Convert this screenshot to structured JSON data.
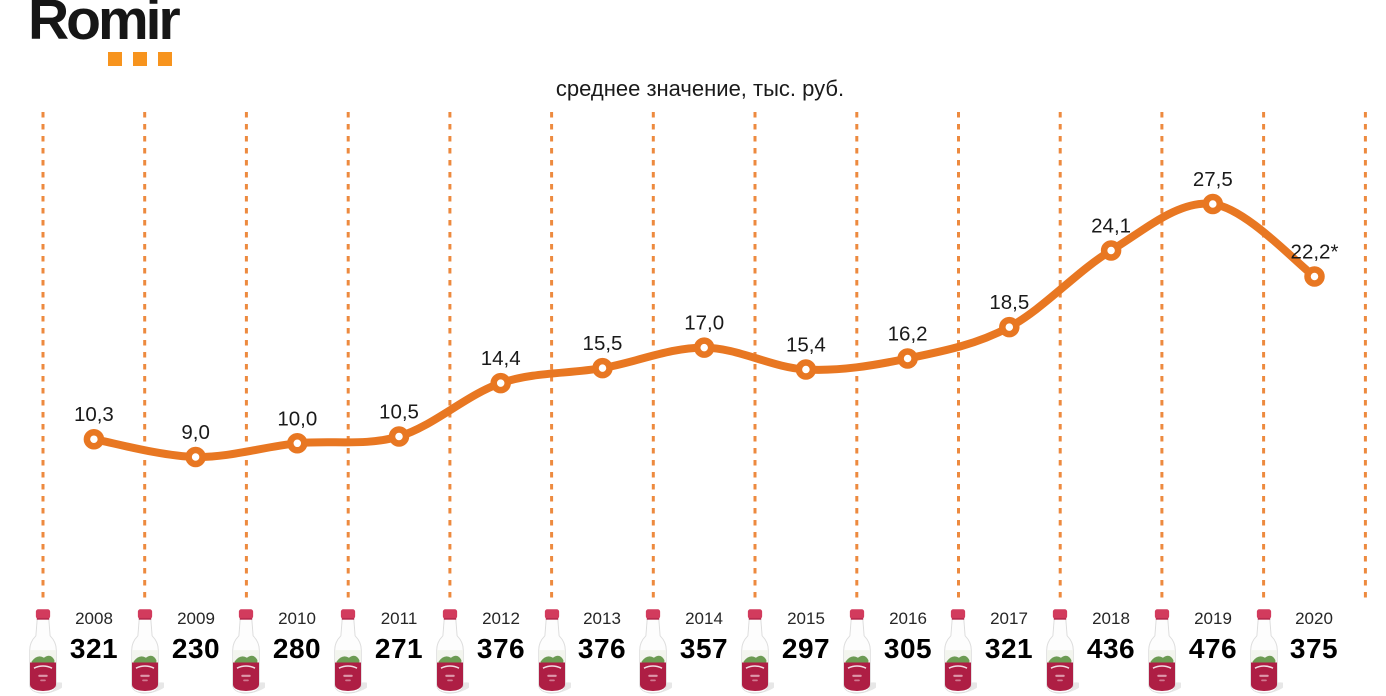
{
  "logo": {
    "text": "Romir"
  },
  "colors": {
    "line": "#E87722",
    "gridline": "#ED8A3F",
    "logo_accent": "#F7941E",
    "label_text": "#1A1A1A",
    "bottle_cap": "#D23B5D",
    "bottle_label": "#AE1E44",
    "bottle_scene_green": "#5D9141"
  },
  "chart_data": {
    "type": "line",
    "title": "среднее значение, тыс. руб.",
    "categories": [
      "2008",
      "2009",
      "2010",
      "2011",
      "2012",
      "2013",
      "2014",
      "2015",
      "2016",
      "2017",
      "2018",
      "2019",
      "2020"
    ],
    "series": [
      {
        "name": "среднее значение, тыс. руб.",
        "values": [
          10.3,
          9.0,
          10.0,
          10.5,
          14.4,
          15.5,
          17.0,
          15.4,
          16.2,
          18.5,
          24.1,
          27.5,
          22.2
        ],
        "point_labels": [
          "10,3",
          "9,0",
          "10,0",
          "10,5",
          "14,4",
          "15,5",
          "17,0",
          "15,4",
          "16,2",
          "18,5",
          "24,1",
          "27,5",
          "22,2*"
        ]
      }
    ],
    "bottom_values": [
      "321",
      "230",
      "280",
      "271",
      "376",
      "376",
      "357",
      "297",
      "305",
      "321",
      "436",
      "476",
      "375"
    ],
    "ylim": [
      8,
      30
    ],
    "grid": "vertical-dashed-orange",
    "legend": "none",
    "marker": "open-circle",
    "line_style": "smoothed"
  }
}
